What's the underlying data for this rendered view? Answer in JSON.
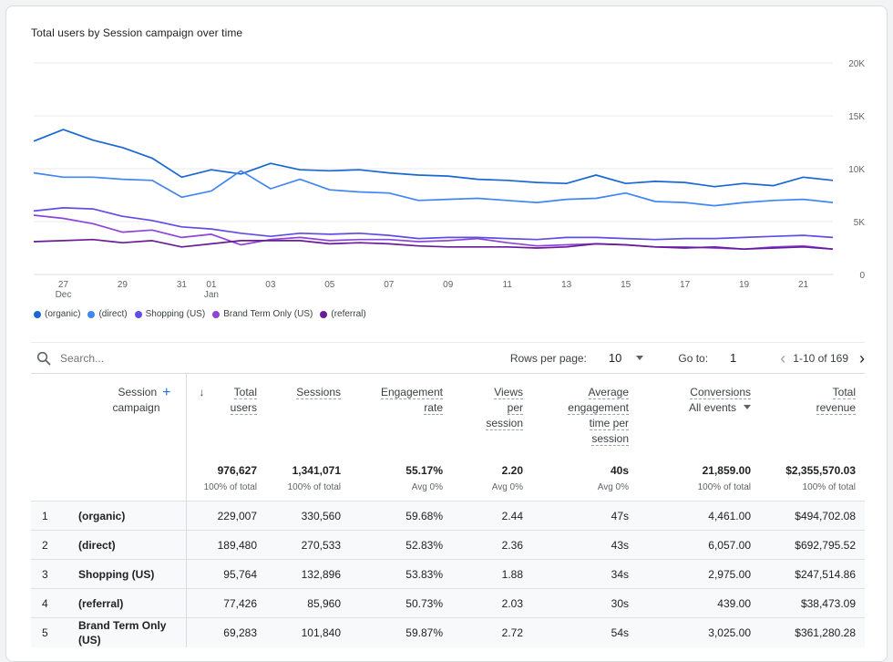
{
  "chart": {
    "title": "Total users by Session campaign over time"
  },
  "chart_data": {
    "type": "line",
    "title": "Total users by Session campaign over time",
    "ylim": [
      0,
      20000
    ],
    "y_ticks": [
      "20K",
      "15K",
      "10K",
      "5K",
      "0"
    ],
    "x_tick_labels": [
      {
        "label": "27",
        "sub": "Dec",
        "day": 1
      },
      {
        "label": "29",
        "sub": "",
        "day": 3
      },
      {
        "label": "31",
        "sub": "",
        "day": 5
      },
      {
        "label": "01",
        "sub": "Jan",
        "day": 6
      },
      {
        "label": "03",
        "sub": "",
        "day": 8
      },
      {
        "label": "05",
        "sub": "",
        "day": 10
      },
      {
        "label": "07",
        "sub": "",
        "day": 12
      },
      {
        "label": "09",
        "sub": "",
        "day": 14
      },
      {
        "label": "11",
        "sub": "",
        "day": 16
      },
      {
        "label": "13",
        "sub": "",
        "day": 18
      },
      {
        "label": "15",
        "sub": "",
        "day": 20
      },
      {
        "label": "17",
        "sub": "",
        "day": 22
      },
      {
        "label": "19",
        "sub": "",
        "day": 24
      },
      {
        "label": "21",
        "sub": "",
        "day": 26
      }
    ],
    "x_count": 28,
    "grid": true,
    "legend_position": "bottom-left",
    "series": [
      {
        "name": "(organic)",
        "color": "#1967d2",
        "values": [
          12600,
          13700,
          12700,
          12000,
          11000,
          9200,
          9900,
          9500,
          10500,
          9900,
          9800,
          9900,
          9600,
          9400,
          9300,
          9000,
          8900,
          8700,
          8600,
          9400,
          8600,
          8800,
          8700,
          8300,
          8600,
          8400,
          9200,
          8900
        ]
      },
      {
        "name": "(direct)",
        "color": "#4285f4",
        "values": [
          9600,
          9200,
          9200,
          9000,
          8900,
          7300,
          7900,
          9800,
          8100,
          9000,
          8000,
          7800,
          7700,
          7000,
          7100,
          7200,
          7000,
          6800,
          7100,
          7200,
          7700,
          6900,
          6800,
          6500,
          6800,
          7000,
          7100,
          6800
        ]
      },
      {
        "name": "Shopping (US)",
        "color": "#5e4ee3",
        "values": [
          6000,
          6300,
          6200,
          5500,
          5100,
          4500,
          4300,
          3900,
          3600,
          3900,
          3800,
          3900,
          3700,
          3400,
          3500,
          3500,
          3400,
          3300,
          3500,
          3500,
          3400,
          3300,
          3400,
          3400,
          3500,
          3600,
          3700,
          3500
        ]
      },
      {
        "name": "Brand Term Only (US)",
        "color": "#8e44d9",
        "values": [
          5600,
          5300,
          4800,
          4000,
          4200,
          3500,
          3800,
          2800,
          3300,
          3500,
          3200,
          3300,
          3300,
          3100,
          3200,
          3400,
          3000,
          2700,
          2800,
          2900,
          2800,
          2600,
          2600,
          2500,
          2400,
          2600,
          2700,
          2400
        ]
      },
      {
        "name": "(referral)",
        "color": "#6a1b9a",
        "values": [
          3100,
          3200,
          3300,
          3000,
          3200,
          2600,
          2900,
          3200,
          3200,
          3200,
          2900,
          3000,
          2900,
          2700,
          2600,
          2600,
          2600,
          2500,
          2600,
          2900,
          2800,
          2600,
          2500,
          2600,
          2400,
          2500,
          2600,
          2400
        ]
      }
    ]
  },
  "toolbar": {
    "search_placeholder": "Search...",
    "rows_label": "Rows per page:",
    "rows_value": "10",
    "goto_label": "Go to:",
    "goto_value": "1",
    "pager_text": "1-10 of 169",
    "prev_glyph": "‹",
    "next_glyph": "›"
  },
  "table": {
    "headers": {
      "campaign": [
        "Session",
        "campaign"
      ],
      "total_users": [
        "Total",
        "users"
      ],
      "sessions": [
        "Sessions"
      ],
      "engagement_rate": [
        "Engagement",
        "rate"
      ],
      "views_per_session": [
        "Views",
        "per",
        "session"
      ],
      "avg_engagement": [
        "Average",
        "engagement",
        "time per",
        "session"
      ],
      "conversions": [
        "Conversions"
      ],
      "conversions_sub": "All events",
      "total_revenue": [
        "Total",
        "revenue"
      ],
      "sort_arrow": "↓",
      "add_glyph": "+"
    },
    "totals": {
      "total_users": "976,627",
      "total_users_sub": "100% of total",
      "sessions": "1,341,071",
      "sessions_sub": "100% of total",
      "engagement_rate": "55.17%",
      "engagement_rate_sub": "Avg 0%",
      "views_per_session": "2.20",
      "views_per_session_sub": "Avg 0%",
      "avg_engagement": "40s",
      "avg_engagement_sub": "Avg 0%",
      "conversions": "21,859.00",
      "conversions_sub": "100% of total",
      "total_revenue": "$2,355,570.03",
      "total_revenue_sub": "100% of total"
    },
    "rows": [
      {
        "idx": "1",
        "campaign": "(organic)",
        "users": "229,007",
        "sessions": "330,560",
        "eng": "59.68%",
        "views": "2.44",
        "avg": "47s",
        "conv": "4,461.00",
        "rev": "$494,702.08"
      },
      {
        "idx": "2",
        "campaign": "(direct)",
        "users": "189,480",
        "sessions": "270,533",
        "eng": "52.83%",
        "views": "2.36",
        "avg": "43s",
        "conv": "6,057.00",
        "rev": "$692,795.52"
      },
      {
        "idx": "3",
        "campaign": "Shopping (US)",
        "users": "95,764",
        "sessions": "132,896",
        "eng": "53.83%",
        "views": "1.88",
        "avg": "34s",
        "conv": "2,975.00",
        "rev": "$247,514.86"
      },
      {
        "idx": "4",
        "campaign": "(referral)",
        "users": "77,426",
        "sessions": "85,960",
        "eng": "50.73%",
        "views": "2.03",
        "avg": "30s",
        "conv": "439.00",
        "rev": "$38,473.09"
      },
      {
        "idx": "5",
        "campaign": "Brand Term Only (US)",
        "users": "69,283",
        "sessions": "101,840",
        "eng": "59.87%",
        "views": "2.72",
        "avg": "54s",
        "conv": "3,025.00",
        "rev": "$361,280.28"
      }
    ]
  }
}
